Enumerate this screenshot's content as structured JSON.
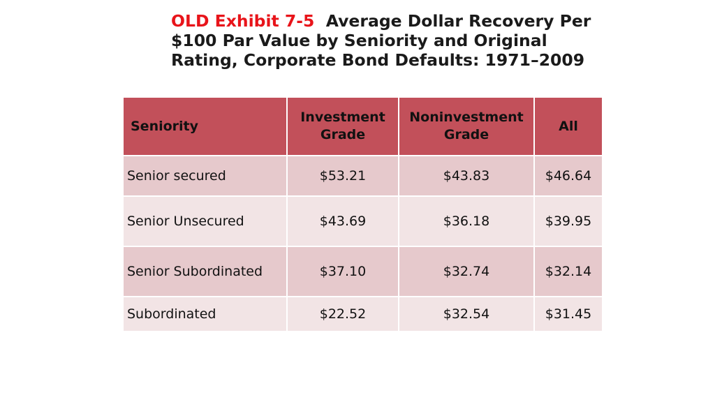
{
  "title": {
    "exhibit": "OLD Exhibit 7-5",
    "text": "Average Dollar Recovery Per $100 Par Value by Seniority and Original Rating, Corporate Bond Defaults: 1971–2009"
  },
  "table": {
    "headers": {
      "seniority": "Seniority",
      "investment_grade": "Investment Grade",
      "noninvestment_grade": "Noninvestment Grade",
      "all": "All"
    },
    "rows": [
      {
        "label": "Senior secured",
        "investment": "$53.21",
        "noninvestment": "$43.83",
        "all": "$46.64"
      },
      {
        "label": "Senior Unsecured",
        "investment": "$43.69",
        "noninvestment": "$36.18",
        "all": "$39.95"
      },
      {
        "label": "Senior Subordinated",
        "investment": "$37.10",
        "noninvestment": "$32.74",
        "all": "$32.14"
      },
      {
        "label": "Subordinated",
        "investment": "$22.52",
        "noninvestment": "$32.54",
        "all": "$31.45"
      }
    ],
    "colors": {
      "header_bg": "#c2505a",
      "row_dark": "#e6c9cc",
      "row_light": "#f2e4e5",
      "exhibit_red": "#e8141a"
    }
  }
}
